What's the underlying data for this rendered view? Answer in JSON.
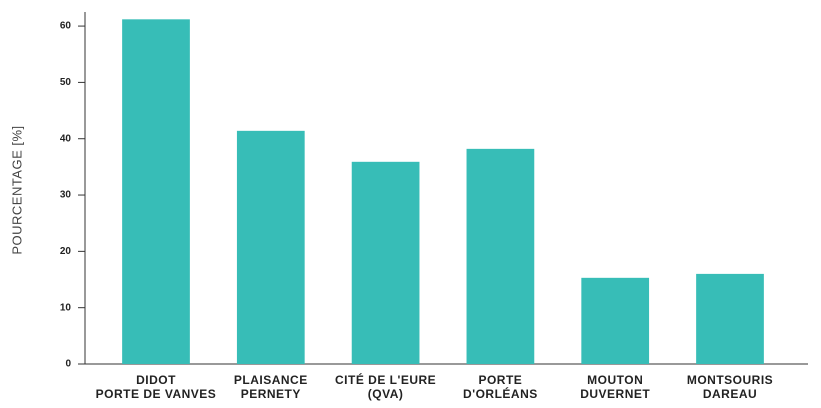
{
  "chart_data": {
    "type": "bar",
    "y_label": "POURCENTAGE [%]",
    "categories": [
      [
        "DIDOT",
        "PORTE DE VANVES"
      ],
      [
        "PLAISANCE",
        "PERNETY"
      ],
      [
        "CITÉ DE L'EURE",
        "(QVA)"
      ],
      [
        "PORTE",
        "D'ORLÉANS"
      ],
      [
        "MOUTON",
        "DUVERNET"
      ],
      [
        "MONTSOURIS",
        "DAREAU"
      ]
    ],
    "values": [
      61.2,
      41.4,
      35.9,
      38.2,
      15.3,
      16.0
    ],
    "color": "#37bdb7",
    "ylim": [
      0,
      62.5
    ],
    "yticks": [
      0,
      10,
      20,
      30,
      40,
      50,
      60
    ],
    "grid": false
  }
}
